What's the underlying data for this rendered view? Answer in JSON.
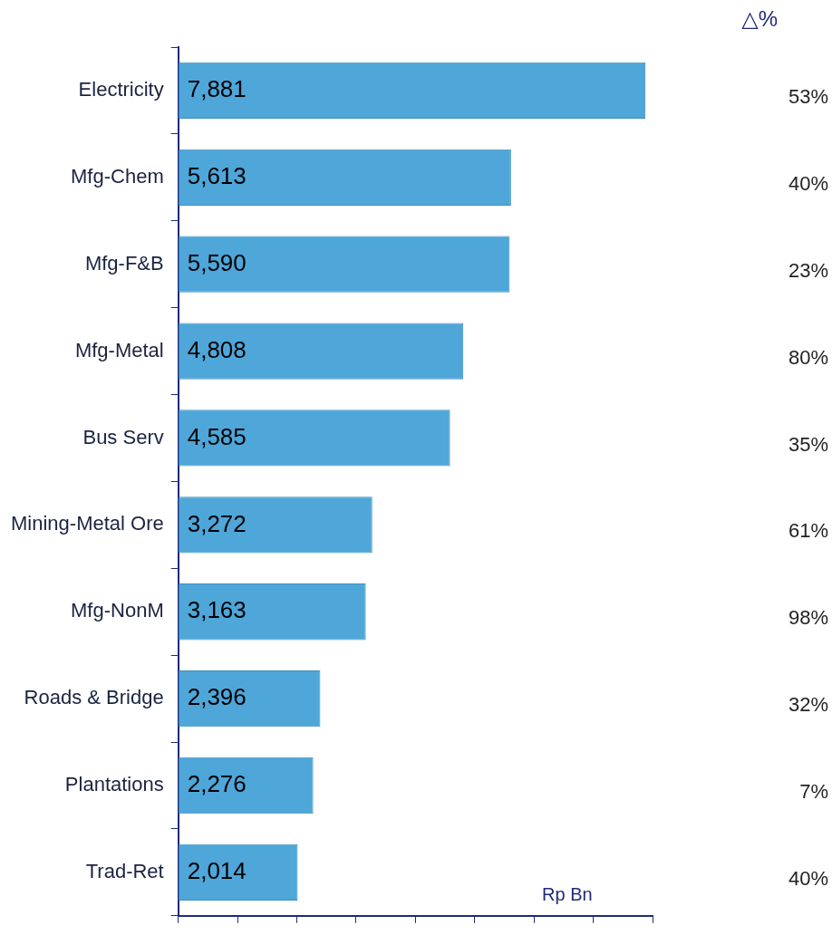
{
  "chart_data": {
    "type": "bar",
    "orientation": "horizontal",
    "categories": [
      "Electricity",
      "Mfg-Chem",
      "Mfg-F&B",
      "Mfg-Metal",
      "Bus Serv",
      "Mining-Metal Ore",
      "Mfg-NonM",
      "Roads & Bridge",
      "Plantations",
      "Trad-Ret"
    ],
    "values": [
      7881,
      5613,
      5590,
      4808,
      4585,
      3272,
      3163,
      2396,
      2276,
      2014
    ],
    "value_labels": [
      "7,881",
      "5,613",
      "5,590",
      "4,808",
      "4,585",
      "3,272",
      "3,163",
      "2,396",
      "2,276",
      "2,014"
    ],
    "color": "#4ea6d9",
    "xlabel": "Rp Bn",
    "tick_labels": "y",
    "grid": false,
    "legend": false,
    "annotations": [
      "△%",
      "53%",
      "40%",
      "23%",
      "80%",
      "35%",
      "61%",
      "98%",
      "32%",
      "7%",
      "40%"
    ]
  }
}
